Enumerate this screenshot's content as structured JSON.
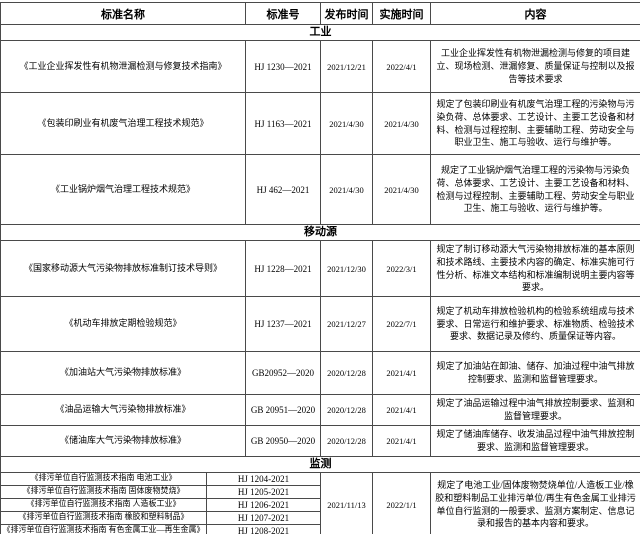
{
  "table": {
    "headers": [
      "标准名称",
      "标准号",
      "发布时间",
      "实施时间",
      "内容"
    ],
    "sections": [
      {
        "title": "工业",
        "rows": [
          {
            "name": "《工业企业挥发性有机物泄漏检测与修复技术指南》",
            "number": "HJ 1230—2021",
            "publish": "2021/12/21",
            "implement": "2022/4/1",
            "content": "工业企业挥发性有机物泄漏检测与修复的项目建立、现场检测、泄漏修复、质量保证与控制以及报告等技术要求"
          },
          {
            "name": "《包装印刷业有机废气治理工程技术规范》",
            "number": "HJ 1163—2021",
            "publish": "2021/4/30",
            "implement": "2021/4/30",
            "content": "规定了包装印刷业有机废气治理工程的污染物与污染负荷、总体要求、工艺设计、主要工艺设备和材料、检测与过程控制、主要辅助工程、劳动安全与职业卫生、施工与验收、运行与维护等。"
          },
          {
            "name": "《工业锅炉烟气治理工程技术规范》",
            "number": "HJ 462—2021",
            "publish": "2021/4/30",
            "implement": "2021/4/30",
            "content": "规定了工业锅炉烟气治理工程的污染物与污染负荷、总体要求、工艺设计、主要工艺设备和材料、检测与过程控制、主要辅助工程、劳动安全与职业卫生、施工与验收、运行与维护等。"
          }
        ]
      },
      {
        "title": "移动源",
        "rows": [
          {
            "name": "《国家移动源大气污染物排放标准制订技术导则》",
            "number": "HJ 1228—2021",
            "publish": "2021/12/30",
            "implement": "2022/3/1",
            "content": "规定了制订移动源大气污染物排放标准的基本原则和技术路线、主要技术内容的确定、标准实施可行性分析、标准文本结构和标准编制说明主要内容等要求。"
          },
          {
            "name": "《机动车排放定期检验规范》",
            "number": "HJ 1237—2021",
            "publish": "2021/12/27",
            "implement": "2022/7/1",
            "content": "规定了机动车排放检验机构的检验系统组成与技术要求、日常运行和维护要求、标准物质、检验技术要求、数据记录及修约、质量保证等内容。"
          },
          {
            "name": "《加油站大气污染物排放标准》",
            "number": "GB20952—2020",
            "publish": "2020/12/28",
            "implement": "2021/4/1",
            "content": "规定了加油站在卸油、储存、加油过程中油气排放控制要求、监测和监督管理要求。"
          },
          {
            "name": "《油品运输大气污染物排放标准》",
            "number": "GB 20951—2020",
            "publish": "2020/12/28",
            "implement": "2021/4/1",
            "content": "规定了油品运输过程中油气排放控制要求、监测和监督管理要求。"
          },
          {
            "name": "《储油库大气污染物排放标准》",
            "number": "GB 20950—2020",
            "publish": "2020/12/28",
            "implement": "2021/4/1",
            "content": "规定了储油库储存、收发油品过程中油气排放控制要求、监测和监督管理要求。"
          }
        ]
      },
      {
        "title": "监测",
        "merged": {
          "publish": "2021/11/13",
          "implement": "2022/1/1",
          "content": "规定了电池工业/固体废物焚烧单位/人造板工业/橡胶和塑料制品工业排污单位/再生有色金属工业排污单位自行监测的一般要求、监测方案制定、信息记录和报告的基本内容和要求。"
        },
        "rows": [
          {
            "name": "《排污单位自行监测技术指南 电池工业》",
            "number": "HJ 1204-2021"
          },
          {
            "name": "《排污单位自行监测技术指南 固体废物焚烧》",
            "number": "HJ 1205-2021"
          },
          {
            "name": "《排污单位自行监测技术指南 人造板工业》",
            "number": "HJ 1206-2021"
          },
          {
            "name": "《排污单位自行监测技术指南 橡胶和塑料制品》",
            "number": "HJ 1207-2021"
          },
          {
            "name": "《排污单位自行监测技术指南 有色金属工业—再生金属》",
            "number": "HJ 1208-2021"
          }
        ]
      }
    ]
  },
  "colors": {
    "border": "#4a4a4a",
    "text": "#000000",
    "background": "#ffffff"
  }
}
